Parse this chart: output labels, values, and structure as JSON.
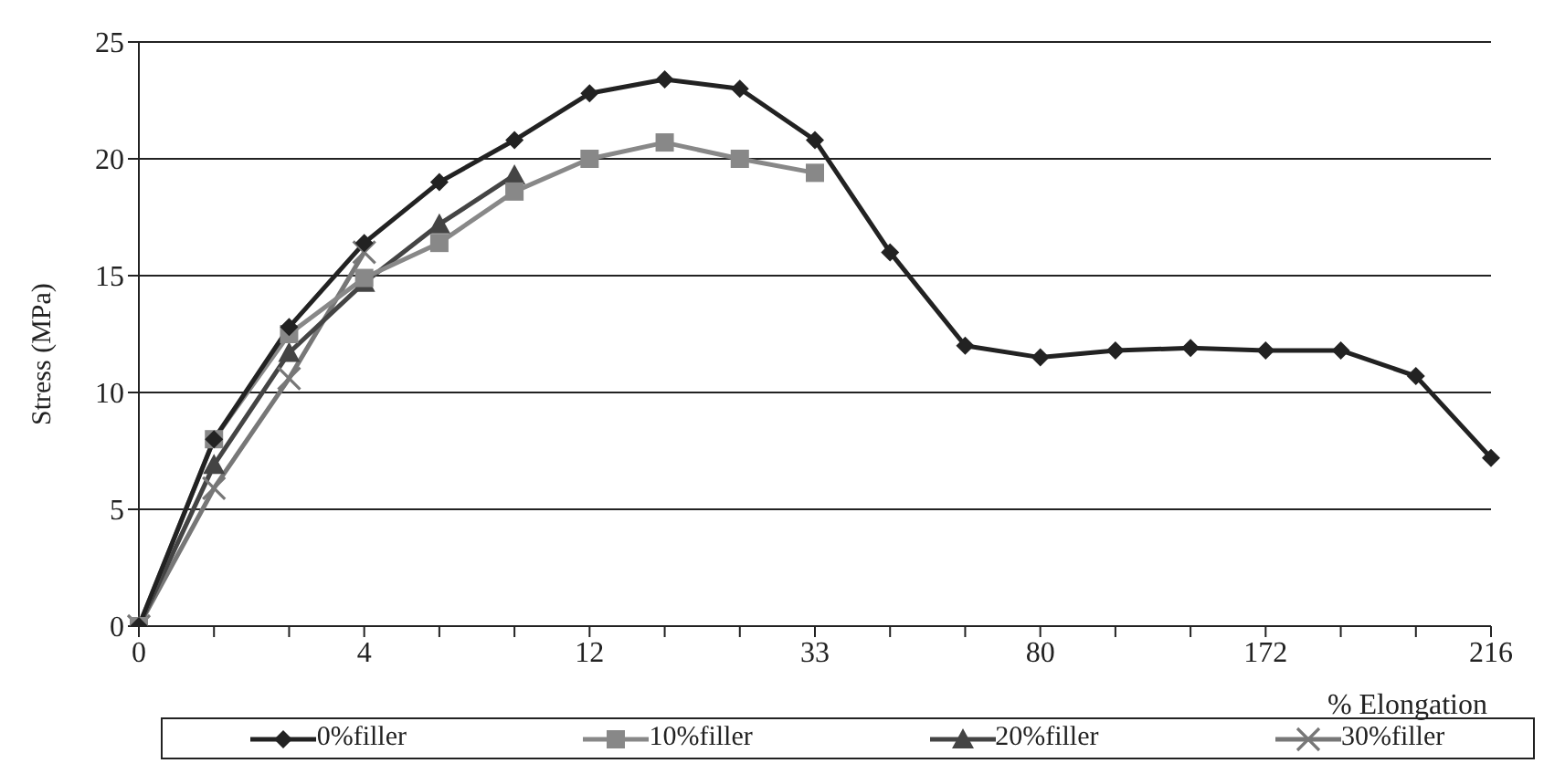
{
  "chart_data": {
    "type": "line",
    "xlabel": "% Elongation",
    "ylabel": "Stress (MPa)",
    "categories": [
      "0",
      null,
      null,
      "4",
      null,
      null,
      "12",
      null,
      null,
      "33",
      null,
      null,
      "80",
      null,
      null,
      "172",
      null,
      null,
      "216"
    ],
    "series": [
      {
        "name": "0%filler",
        "color": "#222222",
        "marker": "diamond",
        "values": [
          0,
          8.0,
          12.8,
          16.4,
          19.0,
          20.8,
          22.8,
          23.4,
          23.0,
          20.8,
          16.0,
          12.0,
          11.5,
          11.8,
          11.9,
          11.8,
          11.8,
          10.7,
          7.2
        ]
      },
      {
        "name": "10%filler",
        "color": "#888888",
        "marker": "square",
        "values": [
          0,
          8.0,
          12.5,
          14.9,
          16.4,
          18.6,
          20.0,
          20.7,
          20.0,
          19.4,
          null,
          null,
          null,
          null,
          null,
          null,
          null,
          null,
          null
        ]
      },
      {
        "name": "20%filler",
        "color": "#444444",
        "marker": "triangle",
        "values": [
          0,
          6.9,
          11.7,
          14.7,
          17.2,
          19.3,
          null,
          null,
          null,
          null,
          null,
          null,
          null,
          null,
          null,
          null,
          null,
          null,
          null
        ]
      },
      {
        "name": "30%filler",
        "color": "#777777",
        "marker": "cross",
        "values": [
          0,
          5.9,
          10.6,
          16.0,
          null,
          null,
          null,
          null,
          null,
          null,
          null,
          null,
          null,
          null,
          null,
          null,
          null,
          null,
          null
        ]
      }
    ],
    "ylim": [
      0,
      25
    ],
    "yticks": [
      0,
      5,
      10,
      15,
      20,
      25
    ],
    "grid": "y",
    "legend": "bottom",
    "line_style": "solid"
  }
}
